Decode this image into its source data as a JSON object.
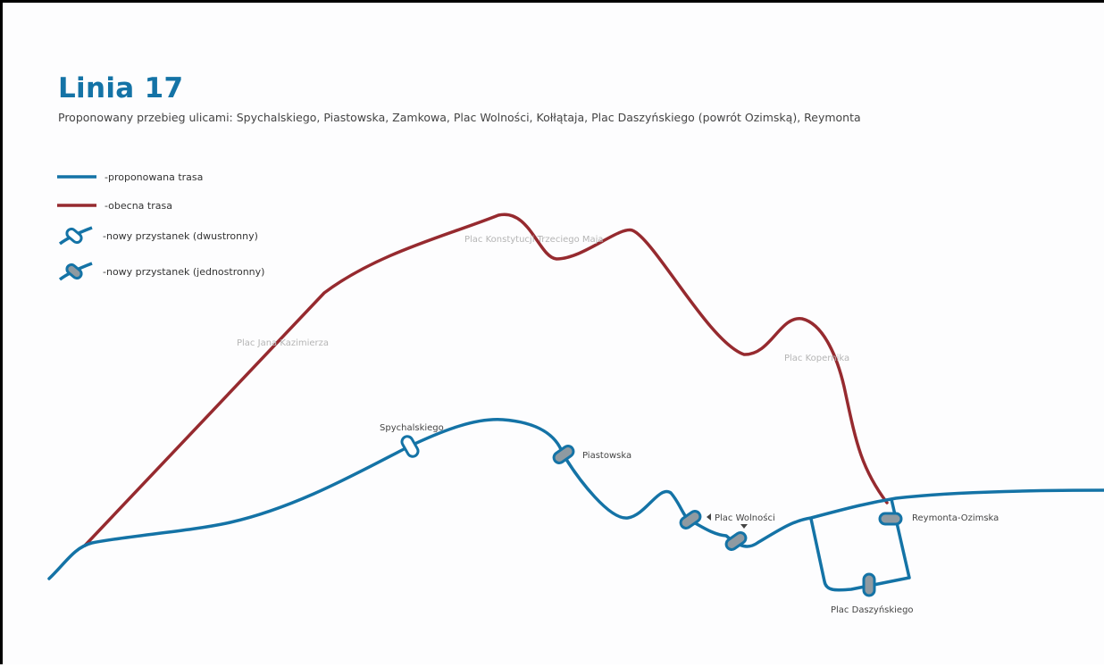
{
  "title": "Linia 17",
  "subtitle": "Proponowany przebieg ulicami: Spychalskiego, Piastowska, Zamkowa, Plac Wolności, Kołłątaja, Plac Daszyńskiego (powrót Ozimską), Reymonta",
  "colors": {
    "proposed_route": "#1473a6",
    "current_route": "#962a2f",
    "stop_fill": "#8f9aa1",
    "stop_fill_bidirectional": "#ffffff"
  },
  "legend": [
    {
      "label": "-proponowana trasa",
      "symbol": "blue-line"
    },
    {
      "label": "-obecna trasa",
      "symbol": "red-line"
    },
    {
      "label": "-nowy przystanek (dwustronny)",
      "symbol": "stop-bidirectional-icon"
    },
    {
      "label": "-nowy przystanek (jednostronny)",
      "symbol": "stop-unidirectional-icon"
    }
  ],
  "current_route_places": [
    "Plac Jana Kazimierza",
    "Plac Konstytucji Trzeciego Maja",
    "Plac Kopernika"
  ],
  "stops": {
    "spychalskiego": "Spychalskiego",
    "piastowska": "Piastowska",
    "plac_wolnosci": "Plac Wolności",
    "reymonta_ozimska": "Reymonta-Ozimska",
    "plac_daszynskiego": "Plac Daszyńskiego"
  }
}
